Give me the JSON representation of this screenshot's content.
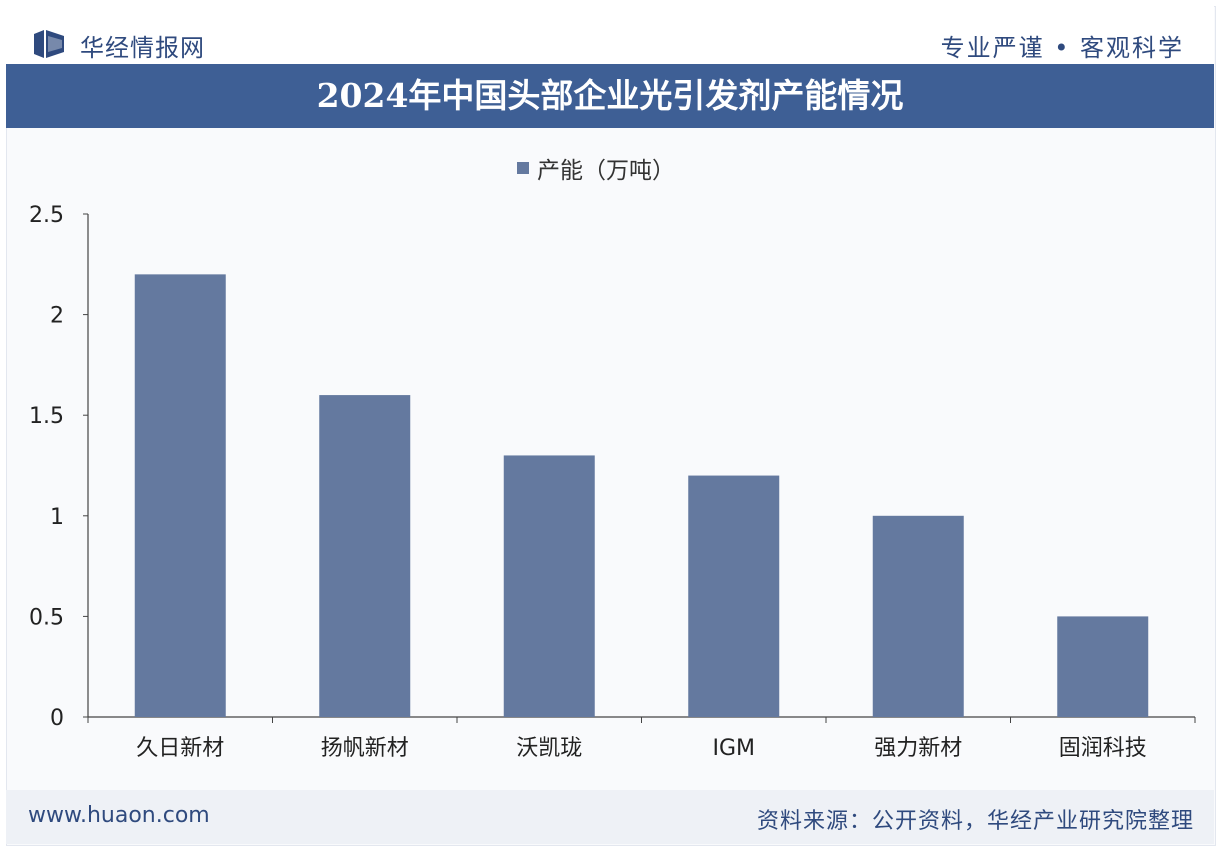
{
  "header": {
    "brand": "华经情报网",
    "slogan": "专业严谨 • 客观科学"
  },
  "title": "2024年中国头部企业光引发剂产能情况",
  "footer": {
    "site": "www.huaon.com",
    "source": "资料来源：公开资料，华经产业研究院整理"
  },
  "colors": {
    "bar": "#64799f",
    "title_bar": "#3e5f95",
    "brand_text": "#2f4a7e"
  },
  "chart_data": {
    "type": "bar",
    "categories": [
      "久日新材",
      "扬帆新材",
      "沃凯珑",
      "IGM",
      "强力新材",
      "固润科技"
    ],
    "series": [
      {
        "name": "产能（万吨）",
        "values": [
          2.2,
          1.6,
          1.3,
          1.2,
          1.0,
          0.5
        ]
      }
    ],
    "ylim": [
      0,
      2.5
    ],
    "yticks": [
      "0",
      "0.5",
      "1",
      "1.5",
      "2",
      "2.5"
    ],
    "legend_position": "top-center",
    "grid": false
  }
}
